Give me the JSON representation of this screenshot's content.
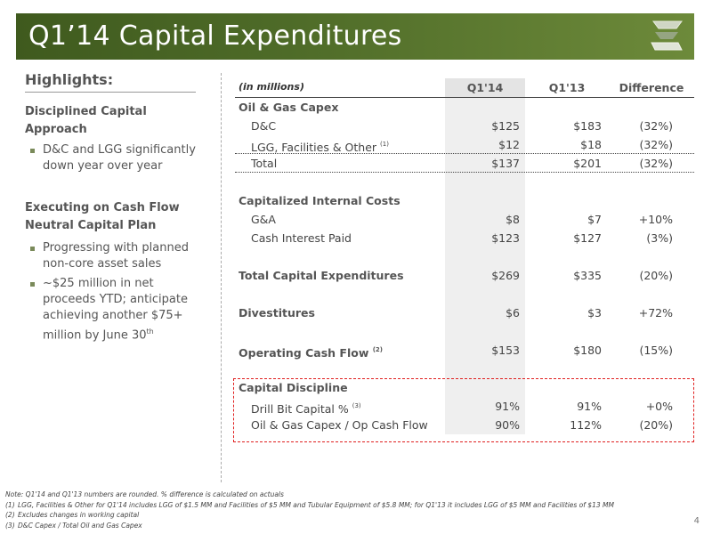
{
  "title": "Q1’14 Capital Expenditures",
  "logo_icon": "company-logo-icon",
  "highlights": {
    "heading": "Highlights:",
    "sections": [
      {
        "title": "Disciplined Capital Approach",
        "bullets": [
          "D&C and LGG significantly down year over year"
        ]
      },
      {
        "title": "Executing on Cash Flow Neutral Capital Plan",
        "bullets": [
          "Progressing with planned non-core asset sales",
          "~$25 million in net proceeds YTD; anticipate achieving another $75+ million by June 30"
        ],
        "last_sup": "th"
      }
    ]
  },
  "table": {
    "unit_label": "(in millions)",
    "headers": [
      "Q1'14",
      "Q1'13",
      "Difference"
    ],
    "sections": {
      "oil_gas": {
        "title": "Oil & Gas Capex",
        "rows": [
          {
            "label": "D&C",
            "sup": "",
            "v1": "$125",
            "v2": "$183",
            "v3": "(32%)"
          },
          {
            "label": "LGG, Facilities & Other",
            "sup": "(1)",
            "v1": "$12",
            "v2": "$18",
            "v3": "(32%)"
          }
        ],
        "total": {
          "label": "Total",
          "v1": "$137",
          "v2": "$201",
          "v3": "(32%)"
        }
      },
      "internal": {
        "title": "Capitalized Internal Costs",
        "rows": [
          {
            "label": "G&A",
            "v1": "$8",
            "v2": "$7",
            "v3": "+10%"
          },
          {
            "label": "Cash Interest Paid",
            "v1": "$123",
            "v2": "$127",
            "v3": "(3%)"
          }
        ]
      },
      "total_capex": {
        "label": "Total Capital Expenditures",
        "v1": "$269",
        "v2": "$335",
        "v3": "(20%)"
      },
      "divestitures": {
        "label": "Divestitures",
        "v1": "$6",
        "v2": "$3",
        "v3": "+72%"
      },
      "op_cash_flow": {
        "label": "Operating Cash Flow",
        "sup": "(2)",
        "v1": "$153",
        "v2": "$180",
        "v3": "(15%)"
      },
      "discipline": {
        "title": "Capital Discipline",
        "rows": [
          {
            "label": "Drill Bit Capital %",
            "sup": "(3)",
            "v1": "91%",
            "v2": "91%",
            "v3": "+0%"
          },
          {
            "label": "Oil & Gas Capex / Op Cash Flow",
            "sup": "",
            "v1": "90%",
            "v2": "112%",
            "v3": "(20%)"
          }
        ]
      }
    }
  },
  "footnotes": {
    "note": "Note: Q1'14 and Q1'13 numbers are rounded. % difference is calculated on actuals",
    "items": [
      {
        "n": "(1)",
        "text": "LGG, Facilities & Other for Q1'14 includes LGG of $1.5 MM and Facilities of $5 MM and Tubular Equipment of $5.8 MM; for Q1'13 it includes LGG of $5 MM and Facilities of $13 MM"
      },
      {
        "n": "(2)",
        "text": "Excludes changes in working capital"
      },
      {
        "n": "(3)",
        "text": "D&C Capex / Total Oil and Gas Capex"
      }
    ]
  },
  "page_number": "4"
}
